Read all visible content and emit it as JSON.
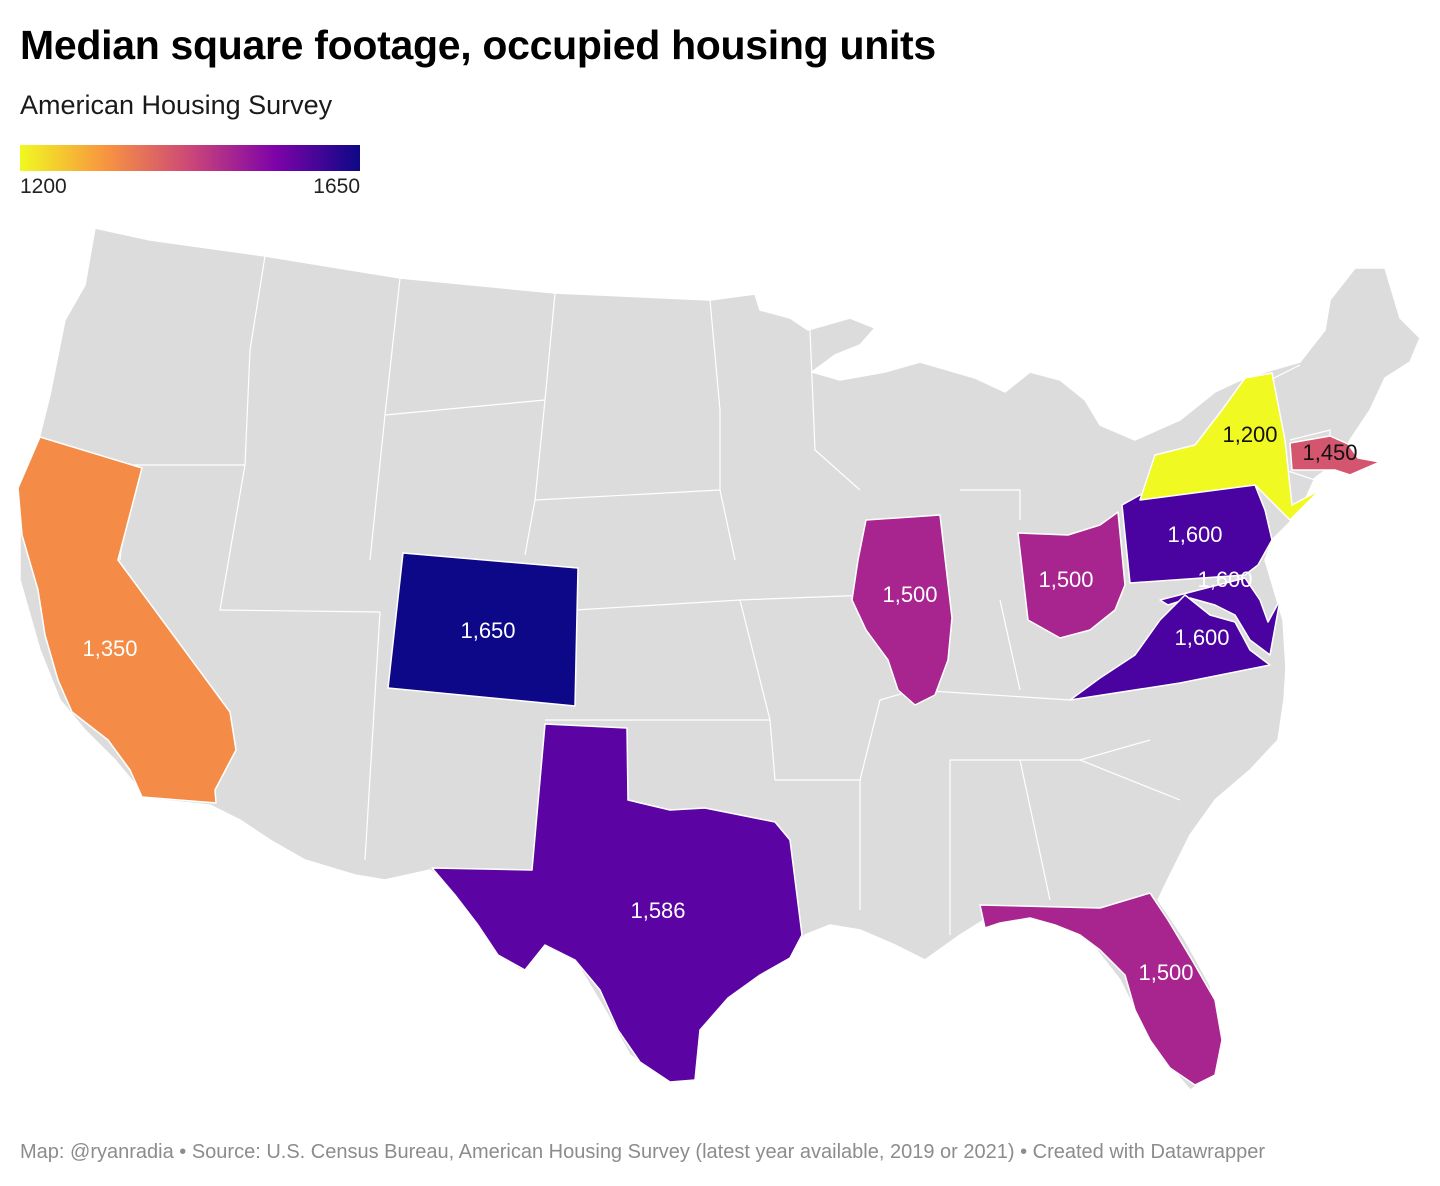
{
  "title": "Median square footage, occupied housing units",
  "subtitle": "American Housing Survey",
  "legend": {
    "min_label": "1200",
    "max_label": "1650",
    "min": 1200,
    "max": 1650,
    "gradient": [
      "#f0f921",
      "#f89540",
      "#cc4778",
      "#7e03a8",
      "#0d0887"
    ]
  },
  "colors": {
    "no_data": "#dcdcdc",
    "border": "#ffffff"
  },
  "states": [
    {
      "id": "california",
      "name": "California",
      "value": 1350,
      "label": "1,350",
      "color": "#f48c48"
    },
    {
      "id": "colorado",
      "name": "Colorado",
      "value": 1650,
      "label": "1,650",
      "color": "#0d0887"
    },
    {
      "id": "texas",
      "name": "Texas",
      "value": 1586,
      "label": "1,586",
      "color": "#5c03a3"
    },
    {
      "id": "illinois",
      "name": "Illinois",
      "value": 1500,
      "label": "1,500",
      "color": "#a8248e"
    },
    {
      "id": "ohio",
      "name": "Ohio",
      "value": 1500,
      "label": "1,500",
      "color": "#a8248e"
    },
    {
      "id": "florida",
      "name": "Florida",
      "value": 1500,
      "label": "1,500",
      "color": "#a8248e"
    },
    {
      "id": "pennsylvania",
      "name": "Pennsylvania",
      "value": 1600,
      "label": "1,600",
      "color": "#4a02a0"
    },
    {
      "id": "maryland",
      "name": "Maryland",
      "value": 1600,
      "label": "1,600",
      "color": "#4a02a0"
    },
    {
      "id": "virginia",
      "name": "Virginia",
      "value": 1600,
      "label": "1,600",
      "color": "#4a02a0"
    },
    {
      "id": "new-york",
      "name": "New York",
      "value": 1200,
      "label": "1,200",
      "color": "#f0f921"
    },
    {
      "id": "massachusetts",
      "name": "Massachusetts",
      "value": 1450,
      "label": "1,450",
      "color": "#d4556e"
    }
  ],
  "footer": {
    "map_credit": "Map: @ryanradia",
    "source": "Source: U.S. Census Bureau, American Housing Survey (latest year available, 2019 or 2021)",
    "created": "Created with Datawrapper",
    "separator": "•"
  }
}
